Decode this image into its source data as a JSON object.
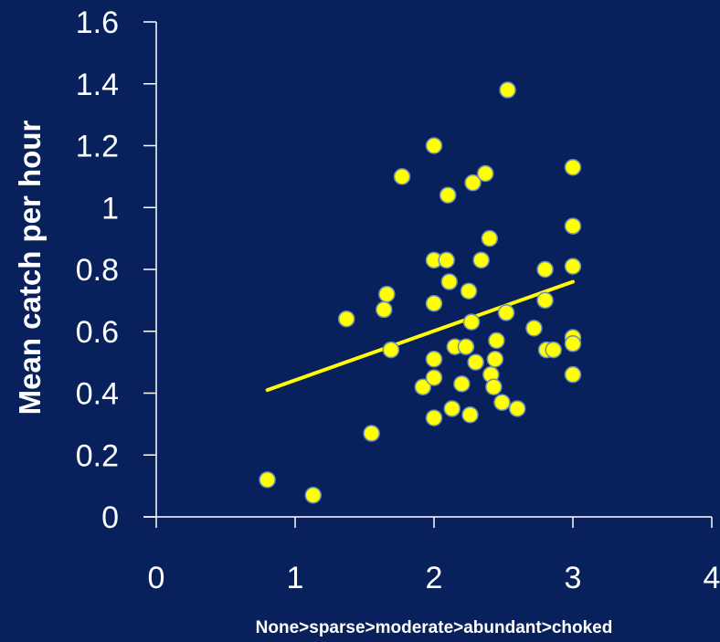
{
  "chart_data": {
    "type": "scatter",
    "xlabel": "None>sparse>moderate>abundant>choked",
    "ylabel": "Mean catch per hour",
    "xlim": [
      0,
      4
    ],
    "ylim": [
      0,
      1.6
    ],
    "x_ticks": [
      "0",
      "1",
      "2",
      "3",
      "4"
    ],
    "y_ticks": [
      "0",
      "0.2",
      "0.4",
      "0.6",
      "0.8",
      "1",
      "1.2",
      "1.4",
      "1.6"
    ],
    "grid": false,
    "legend": "none",
    "colors": {
      "background": "#08205c",
      "marker_fill": "#ffff00",
      "marker_edge": "#6a8fb8",
      "trendline": "#ffff00",
      "axis": "#ffffff"
    },
    "points": [
      {
        "x": 0.8,
        "y": 0.12
      },
      {
        "x": 1.13,
        "y": 0.07
      },
      {
        "x": 1.37,
        "y": 0.64
      },
      {
        "x": 1.55,
        "y": 0.27
      },
      {
        "x": 1.64,
        "y": 0.67
      },
      {
        "x": 1.66,
        "y": 0.72
      },
      {
        "x": 1.69,
        "y": 0.54
      },
      {
        "x": 1.77,
        "y": 1.1
      },
      {
        "x": 1.92,
        "y": 0.42
      },
      {
        "x": 2.0,
        "y": 1.2
      },
      {
        "x": 2.0,
        "y": 0.83
      },
      {
        "x": 2.0,
        "y": 0.69
      },
      {
        "x": 2.0,
        "y": 0.51
      },
      {
        "x": 2.0,
        "y": 0.45
      },
      {
        "x": 2.0,
        "y": 0.32
      },
      {
        "x": 2.09,
        "y": 0.83
      },
      {
        "x": 2.1,
        "y": 1.04
      },
      {
        "x": 2.11,
        "y": 0.76
      },
      {
        "x": 2.13,
        "y": 0.35
      },
      {
        "x": 2.15,
        "y": 0.55
      },
      {
        "x": 2.2,
        "y": 0.43
      },
      {
        "x": 2.23,
        "y": 0.55
      },
      {
        "x": 2.25,
        "y": 0.73
      },
      {
        "x": 2.26,
        "y": 0.33
      },
      {
        "x": 2.27,
        "y": 0.63
      },
      {
        "x": 2.28,
        "y": 1.08
      },
      {
        "x": 2.3,
        "y": 0.5
      },
      {
        "x": 2.34,
        "y": 0.83
      },
      {
        "x": 2.37,
        "y": 1.11
      },
      {
        "x": 2.4,
        "y": 0.9
      },
      {
        "x": 2.41,
        "y": 0.46
      },
      {
        "x": 2.43,
        "y": 0.42
      },
      {
        "x": 2.44,
        "y": 0.51
      },
      {
        "x": 2.45,
        "y": 0.57
      },
      {
        "x": 2.49,
        "y": 0.37
      },
      {
        "x": 2.52,
        "y": 0.66
      },
      {
        "x": 2.53,
        "y": 1.38
      },
      {
        "x": 2.6,
        "y": 0.35
      },
      {
        "x": 2.72,
        "y": 0.61
      },
      {
        "x": 2.8,
        "y": 0.7
      },
      {
        "x": 2.8,
        "y": 0.8
      },
      {
        "x": 2.81,
        "y": 0.54
      },
      {
        "x": 2.86,
        "y": 0.54
      },
      {
        "x": 3.0,
        "y": 1.13
      },
      {
        "x": 3.0,
        "y": 0.94
      },
      {
        "x": 3.0,
        "y": 0.81
      },
      {
        "x": 3.0,
        "y": 0.58
      },
      {
        "x": 3.0,
        "y": 0.56
      },
      {
        "x": 3.0,
        "y": 0.46
      }
    ],
    "trendline": {
      "x": [
        0.8,
        3.0
      ],
      "y": [
        0.41,
        0.76
      ]
    }
  }
}
